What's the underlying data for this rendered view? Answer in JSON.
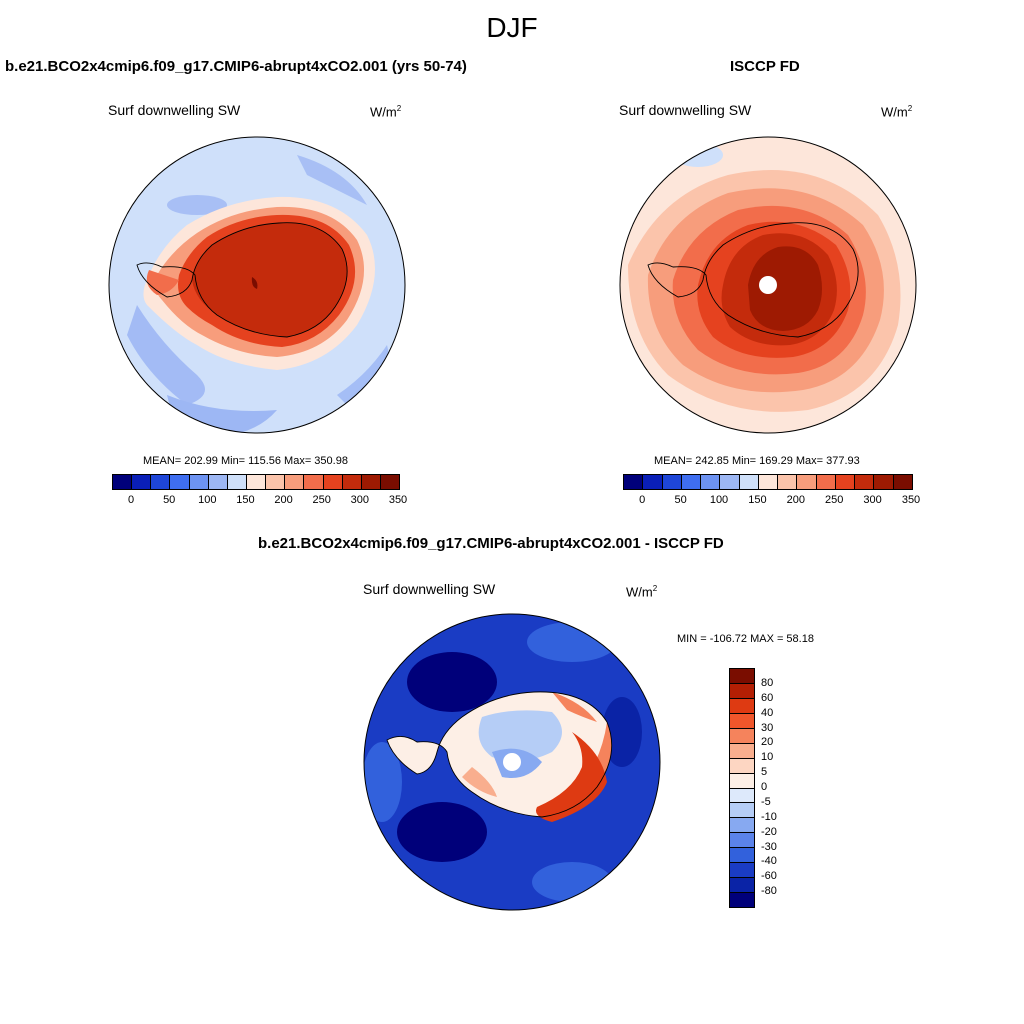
{
  "chart_data": {
    "type": "heatmap",
    "title": "DJF",
    "panels": [
      {
        "title": "b.e21.BCO2x4cmip6.f09_g17.CMIP6-abrupt4xCO2.001 (yrs 50-74)",
        "variable": "Surf downwelling SW",
        "units_base": "W/m",
        "units_exp": "2",
        "stats": "MEAN= 202.99  Min= 115.56  Max= 350.98",
        "mean": 202.99,
        "min": 115.56,
        "max": 350.98,
        "levels": [
          0,
          25,
          50,
          75,
          100,
          125,
          150,
          175,
          200,
          225,
          250,
          275,
          300,
          325,
          350
        ],
        "colorbar_ticks": [
          "0",
          "50",
          "100",
          "150",
          "200",
          "250",
          "300",
          "350"
        ]
      },
      {
        "title": "ISCCP FD",
        "variable": "Surf downwelling SW",
        "units_base": "W/m",
        "units_exp": "2",
        "stats": "MEAN= 242.85  Min= 169.29  Max= 377.93",
        "mean": 242.85,
        "min": 169.29,
        "max": 377.93,
        "levels": [
          0,
          25,
          50,
          75,
          100,
          125,
          150,
          175,
          200,
          225,
          250,
          275,
          300,
          325,
          350
        ],
        "colorbar_ticks": [
          "0",
          "50",
          "100",
          "150",
          "200",
          "250",
          "300",
          "350"
        ]
      },
      {
        "title": "b.e21.BCO2x4cmip6.f09_g17.CMIP6-abrupt4xCO2.001 - ISCCP FD",
        "variable": "Surf downwelling SW",
        "units": "W/m",
        "units_exp": "2",
        "stats": "MIN = -106.72 MAX =  58.18",
        "min": -106.72,
        "max": 58.18,
        "colorbar_ticks": [
          "80",
          "60",
          "40",
          "30",
          "20",
          "10",
          "5",
          "0",
          "-5",
          "-10",
          "-20",
          "-30",
          "-40",
          "-60",
          "-80"
        ]
      }
    ]
  },
  "colors": {
    "abs_cmap": [
      "#00007a",
      "#0a1fb8",
      "#1e46d8",
      "#3f6ef0",
      "#6d93f2",
      "#9db7f4",
      "#cfe0fa",
      "#fde6da",
      "#fbc4ab",
      "#f79d7c",
      "#f26d4b",
      "#e5421f",
      "#c42b0c",
      "#9e1a02",
      "#7a0d00"
    ],
    "diff_cmap": [
      "#7a0d00",
      "#b31f04",
      "#de3a12",
      "#f0562b",
      "#f5835c",
      "#f9ae8e",
      "#fdd6c2",
      "#fdefe6",
      "#dde9fb",
      "#b5cdf6",
      "#87a9f1",
      "#5b83ea",
      "#3261dc",
      "#1a3cc4",
      "#0a23a6",
      "#00007a"
    ]
  }
}
